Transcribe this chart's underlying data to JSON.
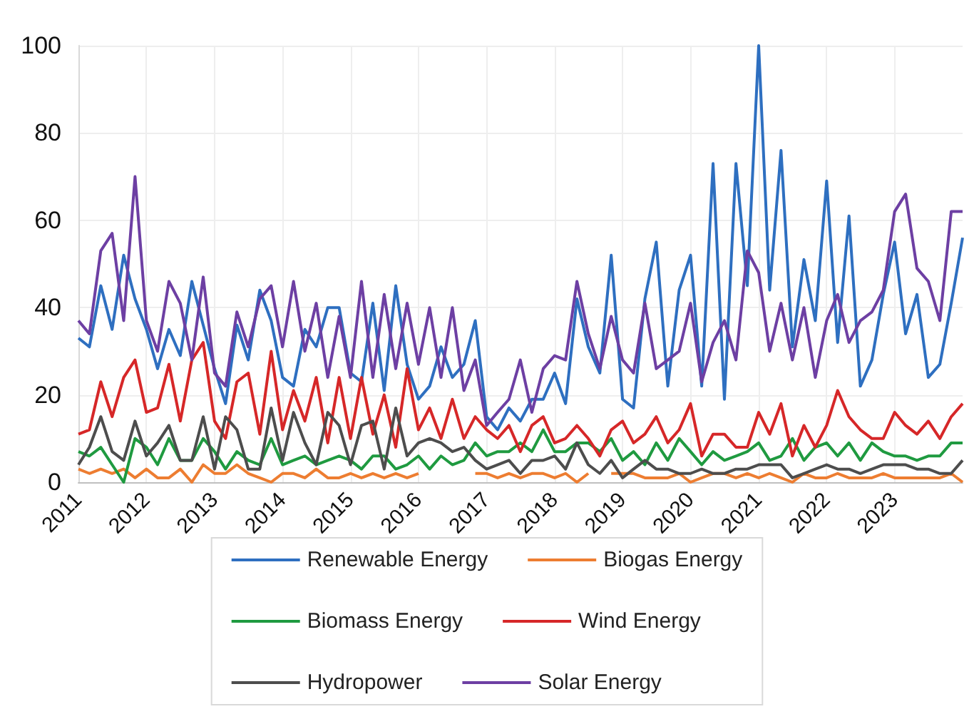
{
  "chart_data": {
    "type": "line",
    "x": [
      "2011-01",
      "2011-03",
      "2011-05",
      "2011-07",
      "2011-09",
      "2011-11",
      "2012-01",
      "2012-03",
      "2012-05",
      "2012-07",
      "2012-09",
      "2012-11",
      "2013-01",
      "2013-03",
      "2013-05",
      "2013-07",
      "2013-09",
      "2013-11",
      "2014-01",
      "2014-03",
      "2014-05",
      "2014-07",
      "2014-09",
      "2014-11",
      "2015-01",
      "2015-03",
      "2015-05",
      "2015-07",
      "2015-09",
      "2015-11",
      "2016-01",
      "2016-03",
      "2016-05",
      "2016-07",
      "2016-09",
      "2016-11",
      "2017-01",
      "2017-03",
      "2017-05",
      "2017-07",
      "2017-09",
      "2017-11",
      "2018-01",
      "2018-03",
      "2018-05",
      "2018-07",
      "2018-09",
      "2018-11",
      "2019-01",
      "2019-03",
      "2019-05",
      "2019-07",
      "2019-09",
      "2019-11",
      "2020-01",
      "2020-03",
      "2020-05",
      "2020-07",
      "2020-09",
      "2020-11",
      "2021-01",
      "2021-03",
      "2021-05",
      "2021-07",
      "2021-09",
      "2021-11",
      "2022-01",
      "2022-03",
      "2022-05",
      "2022-07",
      "2022-09",
      "2022-11",
      "2023-01",
      "2023-03",
      "2023-05",
      "2023-07",
      "2023-09",
      "2023-11",
      "2024-01"
    ],
    "series": [
      {
        "name": "Renewable Energy",
        "color": "#2e6fc0",
        "values": [
          33,
          31,
          45,
          35,
          52,
          42,
          35,
          26,
          35,
          29,
          46,
          36,
          26,
          18,
          36,
          28,
          44,
          37,
          24,
          22,
          35,
          31,
          40,
          40,
          25,
          23,
          41,
          21,
          45,
          27,
          19,
          22,
          31,
          24,
          27,
          37,
          15,
          12,
          17,
          14,
          19,
          19,
          25,
          18,
          42,
          31,
          25,
          52,
          19,
          17,
          42,
          55,
          22,
          44,
          52,
          22,
          73,
          19,
          73,
          45,
          100,
          44,
          76,
          31,
          51,
          37,
          69,
          32,
          61,
          22,
          28,
          43,
          55,
          34,
          43,
          24,
          27,
          41,
          56
        ]
      },
      {
        "name": "Biogas Energy",
        "color": "#ed7d31",
        "values": [
          3,
          2,
          3,
          2,
          3,
          1,
          3,
          1,
          1,
          3,
          0,
          4,
          2,
          2,
          4,
          2,
          1,
          0,
          2,
          2,
          1,
          3,
          1,
          1,
          2,
          1,
          2,
          1,
          2,
          1,
          2,
          null,
          null,
          null,
          null,
          2,
          2,
          1,
          2,
          1,
          2,
          2,
          1,
          2,
          0,
          2,
          null,
          2,
          2,
          2,
          1,
          1,
          1,
          2,
          0,
          1,
          2,
          2,
          1,
          2,
          1,
          2,
          1,
          0,
          2,
          1,
          1,
          2,
          1,
          1,
          1,
          2,
          1,
          1,
          1,
          1,
          1,
          2,
          0
        ]
      },
      {
        "name": "Biomass Energy",
        "color": "#1f9a40",
        "values": [
          7,
          6,
          8,
          4,
          0,
          10,
          8,
          4,
          10,
          5,
          5,
          10,
          7,
          3,
          7,
          5,
          4,
          10,
          4,
          5,
          6,
          4,
          5,
          6,
          5,
          3,
          6,
          6,
          3,
          4,
          6,
          3,
          6,
          4,
          5,
          9,
          6,
          7,
          7,
          9,
          7,
          12,
          7,
          7,
          9,
          9,
          7,
          10,
          5,
          7,
          4,
          9,
          5,
          10,
          7,
          4,
          7,
          5,
          6,
          7,
          9,
          5,
          6,
          10,
          5,
          8,
          9,
          6,
          9,
          5,
          9,
          7,
          6,
          6,
          5,
          6,
          6,
          9,
          9
        ]
      },
      {
        "name": "Wind Energy",
        "color": "#d62728",
        "values": [
          11,
          12,
          23,
          15,
          24,
          28,
          16,
          17,
          27,
          14,
          28,
          32,
          14,
          10,
          23,
          25,
          11,
          30,
          12,
          21,
          14,
          24,
          9,
          24,
          10,
          24,
          11,
          20,
          8,
          26,
          12,
          17,
          10,
          19,
          10,
          15,
          12,
          10,
          13,
          7,
          13,
          15,
          9,
          10,
          13,
          10,
          6,
          12,
          14,
          9,
          11,
          15,
          9,
          12,
          18,
          6,
          11,
          11,
          8,
          8,
          16,
          11,
          18,
          6,
          13,
          8,
          13,
          21,
          15,
          12,
          10,
          10,
          16,
          13,
          11,
          14,
          10,
          15,
          18
        ]
      },
      {
        "name": "Hydropower",
        "color": "#4d4d4d",
        "values": [
          4,
          8,
          15,
          7,
          5,
          14,
          6,
          9,
          13,
          5,
          5,
          15,
          3,
          15,
          12,
          3,
          3,
          17,
          5,
          16,
          9,
          4,
          16,
          13,
          4,
          13,
          14,
          3,
          17,
          6,
          9,
          10,
          9,
          7,
          8,
          5,
          3,
          4,
          5,
          2,
          5,
          5,
          6,
          3,
          9,
          4,
          2,
          5,
          1,
          3,
          5,
          3,
          3,
          2,
          2,
          3,
          2,
          2,
          3,
          3,
          4,
          4,
          4,
          1,
          2,
          3,
          4,
          3,
          3,
          2,
          3,
          4,
          4,
          4,
          3,
          3,
          2,
          2,
          5
        ]
      },
      {
        "name": "Solar Energy",
        "color": "#6d3fa3",
        "values": [
          37,
          34,
          53,
          57,
          37,
          70,
          37,
          30,
          46,
          41,
          28,
          47,
          25,
          22,
          39,
          31,
          42,
          45,
          31,
          46,
          30,
          41,
          24,
          38,
          24,
          46,
          24,
          43,
          26,
          41,
          27,
          40,
          24,
          40,
          21,
          28,
          13,
          16,
          19,
          28,
          16,
          26,
          29,
          28,
          46,
          34,
          26,
          38,
          28,
          25,
          41,
          26,
          28,
          30,
          41,
          23,
          32,
          37,
          28,
          53,
          48,
          30,
          41,
          28,
          40,
          24,
          37,
          43,
          32,
          37,
          39,
          44,
          62,
          66,
          49,
          46,
          37,
          62,
          62
        ]
      }
    ],
    "xlim": [
      "2011-01",
      "2024-01"
    ],
    "xticks": [
      "2011",
      "2012",
      "2013",
      "2014",
      "2015",
      "2016",
      "2017",
      "2018",
      "2019",
      "2020",
      "2021",
      "2022",
      "2023"
    ],
    "ylim": [
      0,
      100
    ],
    "yticks": [
      0,
      20,
      40,
      60,
      80,
      100
    ],
    "grid": true,
    "legend": "bottom"
  }
}
